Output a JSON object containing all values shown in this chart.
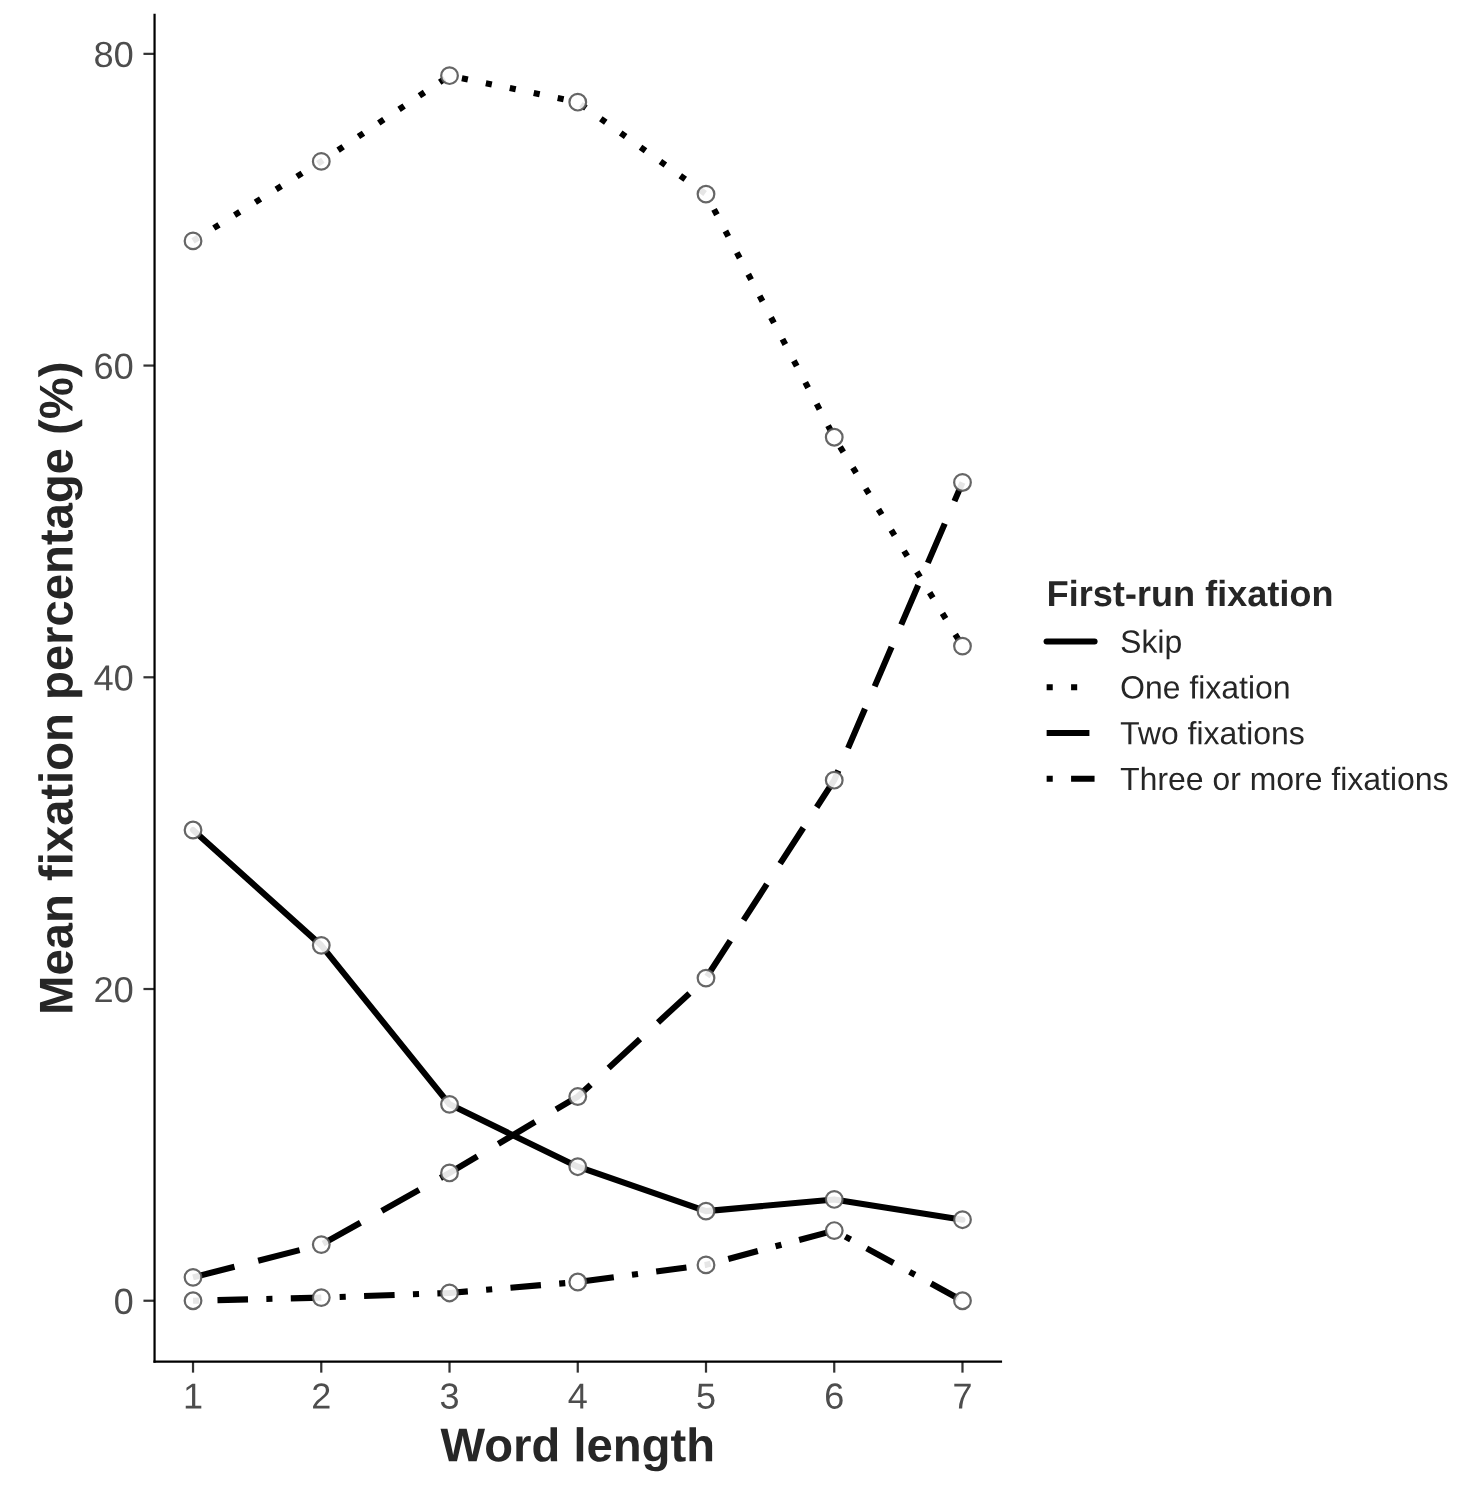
{
  "chart_data": {
    "type": "line",
    "xlabel": "Word length",
    "ylabel": "Mean fixation percentage (%)",
    "legend_title": "First-run fixation",
    "legend": "right",
    "grid": false,
    "marker": "circle",
    "x": [
      1,
      2,
      3,
      4,
      5,
      6,
      7
    ],
    "xlim": [
      0.7,
      7.3
    ],
    "xticks": [
      1,
      2,
      3,
      4,
      5,
      6,
      7
    ],
    "ylim": [
      -3.9,
      82.5
    ],
    "yticks": [
      0,
      20,
      40,
      60,
      80
    ],
    "series": [
      {
        "name": "Skip",
        "color": "#000000",
        "line_style": "solid",
        "values": [
          30.2,
          22.8,
          12.6,
          8.6,
          5.75,
          6.5,
          5.2
        ]
      },
      {
        "name": "One fixation",
        "color": "#000000",
        "line_style": "dotted",
        "values": [
          68.0,
          73.1,
          78.6,
          76.9,
          71.0,
          55.4,
          42.0
        ]
      },
      {
        "name": "Two fixations",
        "color": "#000000",
        "line_style": "dashed",
        "values": [
          1.5,
          3.6,
          8.2,
          13.1,
          20.7,
          33.4,
          52.5
        ]
      },
      {
        "name": "Three or more fixations",
        "color": "#000000",
        "line_style": "dashdot",
        "values": [
          0,
          0.2,
          0.5,
          1.2,
          2.3,
          4.5,
          0
        ]
      }
    ]
  }
}
